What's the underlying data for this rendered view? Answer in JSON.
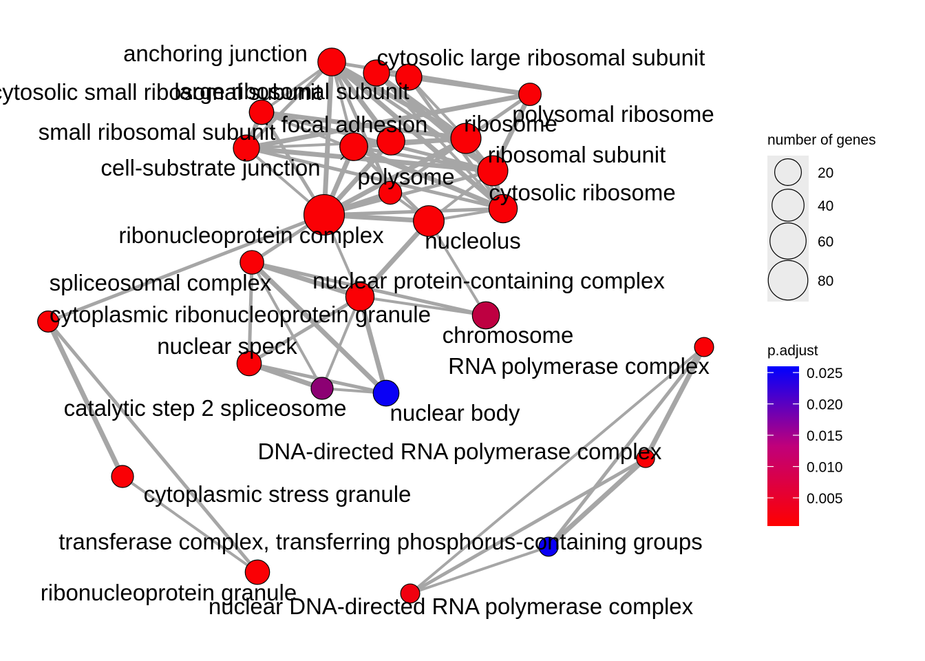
{
  "network": {
    "nodes": [
      {
        "id": "anchoring",
        "label": "anchoring junction",
        "genes": 30,
        "padj": 0.001
      },
      {
        "id": "large_a",
        "label": "",
        "genes": 25,
        "padj": 0.001
      },
      {
        "id": "cytosolic_large",
        "label": "cytosolic large ribosomal subunit",
        "genes": 25,
        "padj": 0.001
      },
      {
        "id": "cytosolic_small",
        "label": "cytosolic small ribosomal subunit",
        "genes": 20,
        "padj": 0.001
      },
      {
        "id": "large_sub",
        "label": "large ribosomal subunit",
        "genes": 20,
        "padj": 0.001
      },
      {
        "id": "polysomal",
        "label": "polysomal ribosome",
        "genes": 15,
        "padj": 0.001
      },
      {
        "id": "small_sub",
        "label": "small ribosomal subunit",
        "genes": 25,
        "padj": 0.001
      },
      {
        "id": "focal",
        "label": "focal adhesion",
        "genes": 30,
        "padj": 0.001
      },
      {
        "id": "cell_sub",
        "label": "cell-substrate junction",
        "genes": 30,
        "padj": 0.001
      },
      {
        "id": "fa2",
        "label": "",
        "genes": 30,
        "padj": 0.001
      },
      {
        "id": "ribosome",
        "label": "ribosome",
        "genes": 38,
        "padj": 0.001
      },
      {
        "id": "ribo_sub",
        "label": "ribosomal subunit",
        "genes": 38,
        "padj": 0.001
      },
      {
        "id": "polysome",
        "label": "polysome",
        "genes": 16,
        "padj": 0.001
      },
      {
        "id": "cyto_ribosome",
        "label": "cytosolic ribosome",
        "genes": 32,
        "padj": 0.001
      },
      {
        "id": "rnp_complex",
        "label": "ribonucleoprotein complex",
        "genes": 80,
        "padj": 0.001
      },
      {
        "id": "nucleolus",
        "label": "nucleolus",
        "genes": 40,
        "padj": 0.001
      },
      {
        "id": "spliceosomal",
        "label": "spliceosomal complex",
        "genes": 18,
        "padj": 0.001
      },
      {
        "id": "nuc_protein",
        "label": "nuclear protein-containing complex",
        "genes": 32,
        "padj": 0.001
      },
      {
        "id": "cyto_rnp_granule",
        "label": "cytoplasmic ribonucleoprotein granule",
        "genes": 12,
        "padj": 0.001
      },
      {
        "id": "chromosome",
        "label": "chromosome",
        "genes": 28,
        "padj": 0.007
      },
      {
        "id": "nuc_speck",
        "label": "nuclear speck",
        "genes": 20,
        "padj": 0.001
      },
      {
        "id": "cat_step2",
        "label": "catalytic step 2 spliceosome",
        "genes": 14,
        "padj": 0.012
      },
      {
        "id": "nuc_body",
        "label": "nuclear body",
        "genes": 24,
        "padj": 0.025
      },
      {
        "id": "rna_pol",
        "label": "RNA polymerase complex",
        "genes": 8,
        "padj": 0.001
      },
      {
        "id": "dna_rna_pol",
        "label": "DNA-directed RNA polymerase complex",
        "genes": 6,
        "padj": 0.001
      },
      {
        "id": "cyto_stress",
        "label": "cytoplasmic stress granule",
        "genes": 14,
        "padj": 0.001
      },
      {
        "id": "transferase",
        "label": "transferase complex, transferring phosphorus-containing groups",
        "genes": 8,
        "padj": 0.025
      },
      {
        "id": "rnp_granule",
        "label": "ribonucleoprotein granule",
        "genes": 20,
        "padj": 0.001
      },
      {
        "id": "nuc_dna_rna_pol",
        "label": "nuclear DNA-directed RNA polymerase complex",
        "genes": 8,
        "padj": 0.002
      }
    ],
    "edges": [
      [
        "anchoring",
        "rnp_complex"
      ],
      [
        "anchoring",
        "polysomal"
      ],
      [
        "anchoring",
        "cell_sub"
      ],
      [
        "anchoring",
        "focal"
      ],
      [
        "anchoring",
        "small_sub"
      ],
      [
        "anchoring",
        "cytosolic_small"
      ],
      [
        "anchoring",
        "ribosome"
      ],
      [
        "anchoring",
        "ribo_sub"
      ],
      [
        "anchoring",
        "fa2"
      ],
      [
        "anchoring",
        "cyto_ribosome"
      ],
      [
        "anchoring",
        "polysome"
      ],
      [
        "large_a",
        "polysomal"
      ],
      [
        "cytosolic_large",
        "polysomal"
      ],
      [
        "large_a",
        "ribosome"
      ],
      [
        "cytosolic_large",
        "ribosome"
      ],
      [
        "large_a",
        "ribo_sub"
      ],
      [
        "cytosolic_large",
        "cyto_ribosome"
      ],
      [
        "large_a",
        "cyto_ribosome"
      ],
      [
        "cytosolic_small",
        "ribosome"
      ],
      [
        "cytosolic_small",
        "ribo_sub"
      ],
      [
        "cytosolic_small",
        "cyto_ribosome"
      ],
      [
        "cytosolic_small",
        "small_sub"
      ],
      [
        "cytosolic_small",
        "rnp_complex"
      ],
      [
        "small_sub",
        "ribosome"
      ],
      [
        "small_sub",
        "ribo_sub"
      ],
      [
        "small_sub",
        "cyto_ribosome"
      ],
      [
        "small_sub",
        "rnp_complex"
      ],
      [
        "small_sub",
        "polysomal"
      ],
      [
        "focal",
        "cell_sub"
      ],
      [
        "focal",
        "anchoring"
      ],
      [
        "cell_sub",
        "rnp_complex"
      ],
      [
        "cell_sub",
        "ribosome"
      ],
      [
        "cell_sub",
        "ribo_sub"
      ],
      [
        "fa2",
        "ribosome"
      ],
      [
        "fa2",
        "ribo_sub"
      ],
      [
        "fa2",
        "rnp_complex"
      ],
      [
        "fa2",
        "cyto_ribosome"
      ],
      [
        "ribosome",
        "ribo_sub"
      ],
      [
        "ribosome",
        "cyto_ribosome"
      ],
      [
        "ribosome",
        "rnp_complex"
      ],
      [
        "ribosome",
        "polysomal"
      ],
      [
        "ribosome",
        "polysome"
      ],
      [
        "ribo_sub",
        "cyto_ribosome"
      ],
      [
        "ribo_sub",
        "rnp_complex"
      ],
      [
        "ribo_sub",
        "nucleolus"
      ],
      [
        "polysome",
        "rnp_complex"
      ],
      [
        "polysome",
        "ribosome"
      ],
      [
        "polysomal",
        "polysome"
      ],
      [
        "polysomal",
        "ribo_sub"
      ],
      [
        "cyto_ribosome",
        "rnp_complex"
      ],
      [
        "cyto_ribosome",
        "nucleolus"
      ],
      [
        "rnp_complex",
        "nucleolus"
      ],
      [
        "rnp_complex",
        "spliceosomal"
      ],
      [
        "rnp_complex",
        "nuc_protein"
      ],
      [
        "rnp_complex",
        "focal"
      ],
      [
        "rnp_complex",
        "cyto_rnp_granule"
      ],
      [
        "nucleolus",
        "chromosome"
      ],
      [
        "nucleolus",
        "nuc_protein"
      ],
      [
        "nucleolus",
        "fa2"
      ],
      [
        "nucleolus",
        "polysome"
      ],
      [
        "spliceosomal",
        "nuc_protein"
      ],
      [
        "spliceosomal",
        "nuc_speck"
      ],
      [
        "spliceosomal",
        "cat_step2"
      ],
      [
        "spliceosomal",
        "nuc_body"
      ],
      [
        "spliceosomal",
        "chromosome"
      ],
      [
        "nuc_protein",
        "chromosome"
      ],
      [
        "nuc_protein",
        "nuc_body"
      ],
      [
        "nuc_protein",
        "nuc_speck"
      ],
      [
        "nuc_protein",
        "cat_step2"
      ],
      [
        "nuc_speck",
        "cat_step2"
      ],
      [
        "nuc_speck",
        "nuc_body"
      ],
      [
        "cat_step2",
        "nuc_body"
      ],
      [
        "cyto_rnp_granule",
        "cyto_stress"
      ],
      [
        "cyto_rnp_granule",
        "rnp_granule"
      ],
      [
        "cyto_stress",
        "rnp_granule"
      ],
      [
        "rna_pol",
        "dna_rna_pol"
      ],
      [
        "rna_pol",
        "transferase"
      ],
      [
        "rna_pol",
        "nuc_dna_rna_pol"
      ],
      [
        "dna_rna_pol",
        "transferase"
      ],
      [
        "dna_rna_pol",
        "nuc_dna_rna_pol"
      ],
      [
        "transferase",
        "nuc_dna_rna_pol"
      ]
    ]
  },
  "legend": {
    "size_title": "number of genes",
    "size_items": [
      {
        "label": "20",
        "value": 20
      },
      {
        "label": "40",
        "value": 40
      },
      {
        "label": "60",
        "value": 60
      },
      {
        "label": "80",
        "value": 80
      }
    ],
    "color_title": "p.adjust",
    "color_range": [
      0.0005,
      0.026
    ],
    "color_ticks": [
      {
        "label": "0.025",
        "value": 0.025
      },
      {
        "label": "0.020",
        "value": 0.02
      },
      {
        "label": "0.015",
        "value": 0.015
      },
      {
        "label": "0.010",
        "value": 0.01
      },
      {
        "label": "0.005",
        "value": 0.005
      }
    ],
    "color_low": "#ff0000",
    "color_high": "#0000ff"
  }
}
